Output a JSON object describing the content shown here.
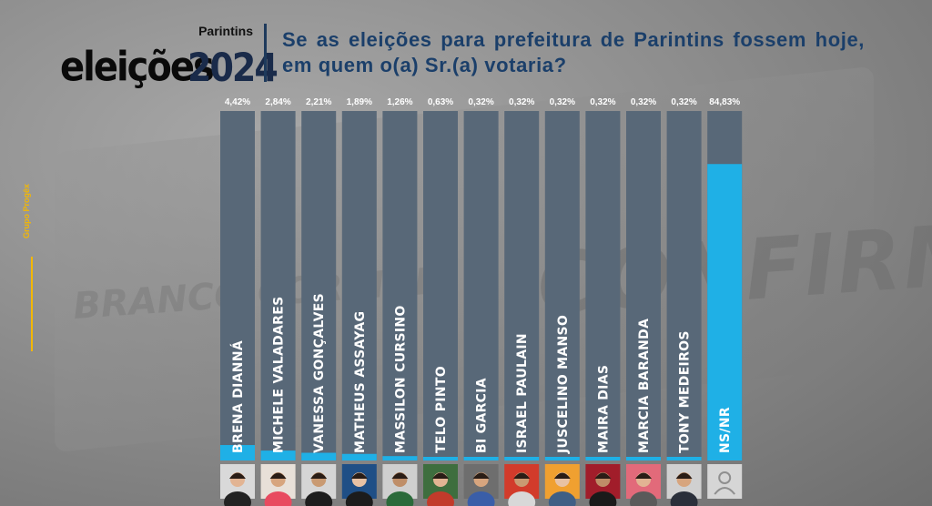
{
  "header": {
    "city": "Parintins",
    "brand": "eleições",
    "year": "2024",
    "question": "Se as eleições para prefeitura de Parintins fossem hoje, em quem o(a) Sr.(a) votaria?"
  },
  "source": "Grupo Progêx",
  "colors": {
    "track": "#586878",
    "fill": "#1fb0e6",
    "question": "#1b3f6a",
    "source": "#f2b705"
  },
  "chart_data": {
    "type": "bar",
    "categories": [
      "BRENA DIANNÁ",
      "MICHELE VALADARES",
      "VANESSA GONÇALVES",
      "MATHEUS ASSAYAG",
      "MASSILON CURSINO",
      "TELO PINTO",
      "BI GARCIA",
      "ISRAEL PAULAIN",
      "JUSCELINO MANSO",
      "MAIRA DIAS",
      "MARCIA BARANDA",
      "TONY MEDEIROS",
      "NS/NR"
    ],
    "values": [
      4.42,
      2.84,
      2.21,
      1.89,
      1.26,
      0.63,
      0.32,
      0.32,
      0.32,
      0.32,
      0.32,
      0.32,
      84.83
    ],
    "value_labels": [
      "4,42%",
      "2,84%",
      "2,21%",
      "1,89%",
      "1,26%",
      "0,63%",
      "0,32%",
      "0,32%",
      "0,32%",
      "0,32%",
      "0,32%",
      "0,32%",
      "84,83%"
    ],
    "ylim": [
      0,
      100
    ]
  }
}
